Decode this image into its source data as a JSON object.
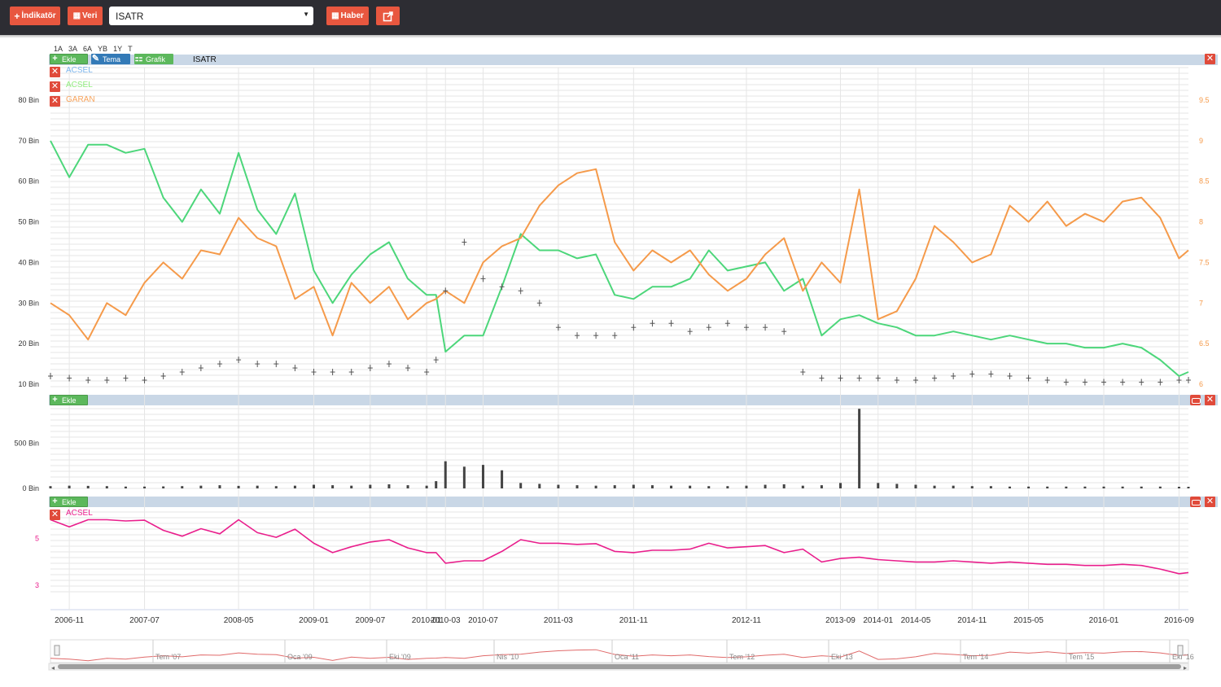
{
  "toolbar": {
    "indicator_label": "İndikatör",
    "data_label": "Veri",
    "symbol_value": "ISATR",
    "news_label": "Haber"
  },
  "range_buttons": [
    "1A",
    "3A",
    "6A",
    "YB",
    "1Y",
    "T"
  ],
  "main_panel": {
    "title": "ISATR",
    "add_label": "Ekle",
    "theme_label": "Tema",
    "chart_label": "Grafik",
    "legend": [
      {
        "label": "ACSEL",
        "color": "#7cb5ec"
      },
      {
        "label": "ACSEL",
        "color": "#90ed7d"
      },
      {
        "label": "GARAN",
        "color": "#f7a35c"
      }
    ]
  },
  "volume_panel": {
    "add_label": "Ekle"
  },
  "indicator_panel": {
    "add_label": "Ekle",
    "legend": [
      {
        "label": "ACSEL",
        "color": "#e91e8c"
      }
    ]
  },
  "colors": {
    "acsel_green": "#4cd67a",
    "garan_orange": "#f59a4a",
    "isatr_ohlc": "#555555",
    "volume_bar": "#444444",
    "indicator_pink": "#e91e8c",
    "navigator_line": "#e06a6a"
  },
  "chart_data": [
    {
      "type": "line",
      "title": "ISATR",
      "x": [
        "2006-09",
        "2006-11",
        "2007-01",
        "2007-03",
        "2007-05",
        "2007-07",
        "2007-09",
        "2007-11",
        "2008-01",
        "2008-03",
        "2008-05",
        "2008-07",
        "2008-09",
        "2008-11",
        "2009-01",
        "2009-03",
        "2009-05",
        "2009-07",
        "2009-09",
        "2009-11",
        "2010-01",
        "2010-02",
        "2010-03",
        "2010-05",
        "2010-07",
        "2010-09",
        "2010-11",
        "2011-01",
        "2011-03",
        "2011-05",
        "2011-07",
        "2011-09",
        "2011-11",
        "2012-01",
        "2012-03",
        "2012-05",
        "2012-07",
        "2012-09",
        "2012-11",
        "2013-01",
        "2013-03",
        "2013-05",
        "2013-07",
        "2013-09",
        "2013-11",
        "2014-01",
        "2014-03",
        "2014-05",
        "2014-07",
        "2014-09",
        "2014-11",
        "2015-01",
        "2015-03",
        "2015-05",
        "2015-07",
        "2015-09",
        "2015-11",
        "2016-01",
        "2016-03",
        "2016-05",
        "2016-07",
        "2016-09",
        "2016-10"
      ],
      "left_axis": {
        "ticks": [
          "10 Bin",
          "20 Bin",
          "30 Bin",
          "40 Bin",
          "50 Bin",
          "60 Bin",
          "70 Bin",
          "80 Bin"
        ],
        "min": 10000,
        "max": 80000
      },
      "right_axis": {
        "ticks": [
          "6",
          "6.5",
          "7",
          "7.5",
          "8",
          "8.5",
          "9",
          "9.5"
        ],
        "min": 6,
        "max": 9.5
      },
      "series": [
        {
          "name": "ACSEL",
          "axis": "right",
          "color": "#4cd67a",
          "values": [
            9.0,
            8.55,
            8.95,
            8.95,
            8.85,
            8.9,
            8.3,
            8.0,
            8.4,
            8.1,
            8.85,
            8.15,
            7.85,
            8.35,
            7.4,
            7.0,
            7.35,
            7.6,
            7.75,
            7.3,
            7.1,
            7.1,
            6.4,
            6.6,
            6.6,
            7.2,
            7.85,
            7.65,
            7.65,
            7.55,
            7.6,
            7.1,
            7.05,
            7.2,
            7.2,
            7.3,
            7.65,
            7.4,
            7.45,
            7.5,
            7.15,
            7.3,
            6.6,
            6.8,
            6.85,
            6.75,
            6.7,
            6.6,
            6.6,
            6.65,
            6.6,
            6.55,
            6.6,
            6.55,
            6.5,
            6.5,
            6.45,
            6.45,
            6.5,
            6.45,
            6.3,
            6.1,
            6.15
          ]
        },
        {
          "name": "GARAN",
          "axis": "left",
          "color": "#f59a4a",
          "values": [
            30000,
            27000,
            21000,
            30000,
            27000,
            35000,
            40000,
            36000,
            43000,
            42000,
            51000,
            46000,
            44000,
            31000,
            34000,
            22000,
            35000,
            30000,
            34000,
            26000,
            30000,
            31000,
            33000,
            30000,
            40000,
            44000,
            46000,
            54000,
            59000,
            62000,
            63000,
            45000,
            38000,
            43000,
            40000,
            43000,
            37000,
            33000,
            36000,
            42000,
            46000,
            33000,
            40000,
            35000,
            58000,
            26000,
            28000,
            36000,
            49000,
            45000,
            40000,
            42000,
            54000,
            50000,
            55000,
            49000,
            52000,
            50000,
            55000,
            56000,
            51000,
            41000,
            43000
          ]
        },
        {
          "name": "ISATR",
          "axis": "left",
          "color": "#555555",
          "style": "ohlc",
          "values": [
            12000,
            11500,
            11000,
            11000,
            11500,
            11000,
            12000,
            13000,
            14000,
            15000,
            16000,
            15000,
            15000,
            14000,
            13000,
            13000,
            13000,
            14000,
            15000,
            14000,
            13000,
            16000,
            33000,
            45000,
            36000,
            34000,
            33000,
            30000,
            24000,
            22000,
            22000,
            22000,
            24000,
            25000,
            25000,
            23000,
            24000,
            25000,
            24000,
            24000,
            23000,
            13000,
            11500,
            11500,
            11500,
            11500,
            11000,
            11000,
            11500,
            12000,
            12500,
            12500,
            12000,
            11500,
            11000,
            10500,
            10500,
            10500,
            10500,
            10500,
            10500,
            11000,
            11000
          ]
        }
      ]
    },
    {
      "type": "bar",
      "title": "",
      "left_axis": {
        "ticks": [
          "0 Bin",
          "500 Bin"
        ],
        "min": 0,
        "max": 900000
      },
      "x": [
        "2006-09",
        "2006-11",
        "2007-01",
        "2007-03",
        "2007-05",
        "2007-07",
        "2007-09",
        "2007-11",
        "2008-01",
        "2008-03",
        "2008-05",
        "2008-07",
        "2008-09",
        "2008-11",
        "2009-01",
        "2009-03",
        "2009-05",
        "2009-07",
        "2009-09",
        "2009-11",
        "2010-01",
        "2010-02",
        "2010-03",
        "2010-05",
        "2010-07",
        "2010-09",
        "2010-11",
        "2011-01",
        "2011-03",
        "2011-05",
        "2011-07",
        "2011-09",
        "2011-11",
        "2012-01",
        "2012-03",
        "2012-05",
        "2012-07",
        "2012-09",
        "2012-11",
        "2013-01",
        "2013-03",
        "2013-05",
        "2013-07",
        "2013-09",
        "2013-11",
        "2014-01",
        "2014-03",
        "2014-05",
        "2014-07",
        "2014-09",
        "2014-11",
        "2015-01",
        "2015-03",
        "2015-05",
        "2015-07",
        "2015-09",
        "2015-11",
        "2016-01",
        "2016-03",
        "2016-05",
        "2016-07",
        "2016-09",
        "2016-10"
      ],
      "values": [
        25000,
        30000,
        28000,
        25000,
        20000,
        20000,
        22000,
        25000,
        30000,
        35000,
        28000,
        30000,
        25000,
        30000,
        40000,
        35000,
        30000,
        40000,
        45000,
        35000,
        30000,
        80000,
        300000,
        240000,
        260000,
        200000,
        60000,
        50000,
        40000,
        35000,
        30000,
        35000,
        40000,
        35000,
        30000,
        30000,
        25000,
        25000,
        30000,
        40000,
        45000,
        30000,
        35000,
        60000,
        880000,
        60000,
        50000,
        40000,
        30000,
        30000,
        25000,
        25000,
        20000,
        20000,
        20000,
        20000,
        20000,
        20000,
        20000,
        20000,
        20000,
        18000,
        18000
      ]
    },
    {
      "type": "line",
      "title": "",
      "left_axis": {
        "ticks": [
          "3",
          "5"
        ],
        "min": 2.8,
        "max": 6.2
      },
      "x": [
        "2006-09",
        "2006-11",
        "2007-01",
        "2007-03",
        "2007-05",
        "2007-07",
        "2007-09",
        "2007-11",
        "2008-01",
        "2008-03",
        "2008-05",
        "2008-07",
        "2008-09",
        "2008-11",
        "2009-01",
        "2009-03",
        "2009-05",
        "2009-07",
        "2009-09",
        "2009-11",
        "2010-01",
        "2010-02",
        "2010-03",
        "2010-05",
        "2010-07",
        "2010-09",
        "2010-11",
        "2011-01",
        "2011-03",
        "2011-05",
        "2011-07",
        "2011-09",
        "2011-11",
        "2012-01",
        "2012-03",
        "2012-05",
        "2012-07",
        "2012-09",
        "2012-11",
        "2013-01",
        "2013-03",
        "2013-05",
        "2013-07",
        "2013-09",
        "2013-11",
        "2014-01",
        "2014-03",
        "2014-05",
        "2014-07",
        "2014-09",
        "2014-11",
        "2015-01",
        "2015-03",
        "2015-05",
        "2015-07",
        "2015-09",
        "2015-11",
        "2016-01",
        "2016-03",
        "2016-05",
        "2016-07",
        "2016-09",
        "2016-10"
      ],
      "series": [
        {
          "name": "ACSEL",
          "color": "#e91e8c",
          "values": [
            5.8,
            5.5,
            5.8,
            5.8,
            5.75,
            5.78,
            5.35,
            5.1,
            5.42,
            5.2,
            5.8,
            5.25,
            5.05,
            5.4,
            4.8,
            4.4,
            4.65,
            4.85,
            4.95,
            4.6,
            4.4,
            4.4,
            3.95,
            4.05,
            4.05,
            4.45,
            4.95,
            4.8,
            4.8,
            4.75,
            4.78,
            4.45,
            4.4,
            4.5,
            4.5,
            4.55,
            4.8,
            4.6,
            4.65,
            4.7,
            4.4,
            4.55,
            4.0,
            4.15,
            4.2,
            4.1,
            4.05,
            4.0,
            4.0,
            4.05,
            4.0,
            3.95,
            4.0,
            3.95,
            3.9,
            3.9,
            3.85,
            3.85,
            3.9,
            3.85,
            3.7,
            3.5,
            3.55
          ]
        }
      ]
    }
  ],
  "x_axis_labels": [
    "2006-11",
    "2007-07",
    "2008-05",
    "2009-01",
    "2009-07",
    "2010-01",
    "2010-03",
    "2010-07",
    "2011-03",
    "2011-11",
    "2012-11",
    "2013-09",
    "2014-01",
    "2014-05",
    "2014-11",
    "2015-05",
    "2016-01",
    "2016-09"
  ],
  "navigator": {
    "labels": [
      "Tem '07",
      "Oca '09",
      "Eki '09",
      "Nis '10",
      "Oca '11",
      "Tem '12",
      "Eki '13",
      "Tem '14",
      "Tem '15",
      "Eki '16"
    ]
  }
}
